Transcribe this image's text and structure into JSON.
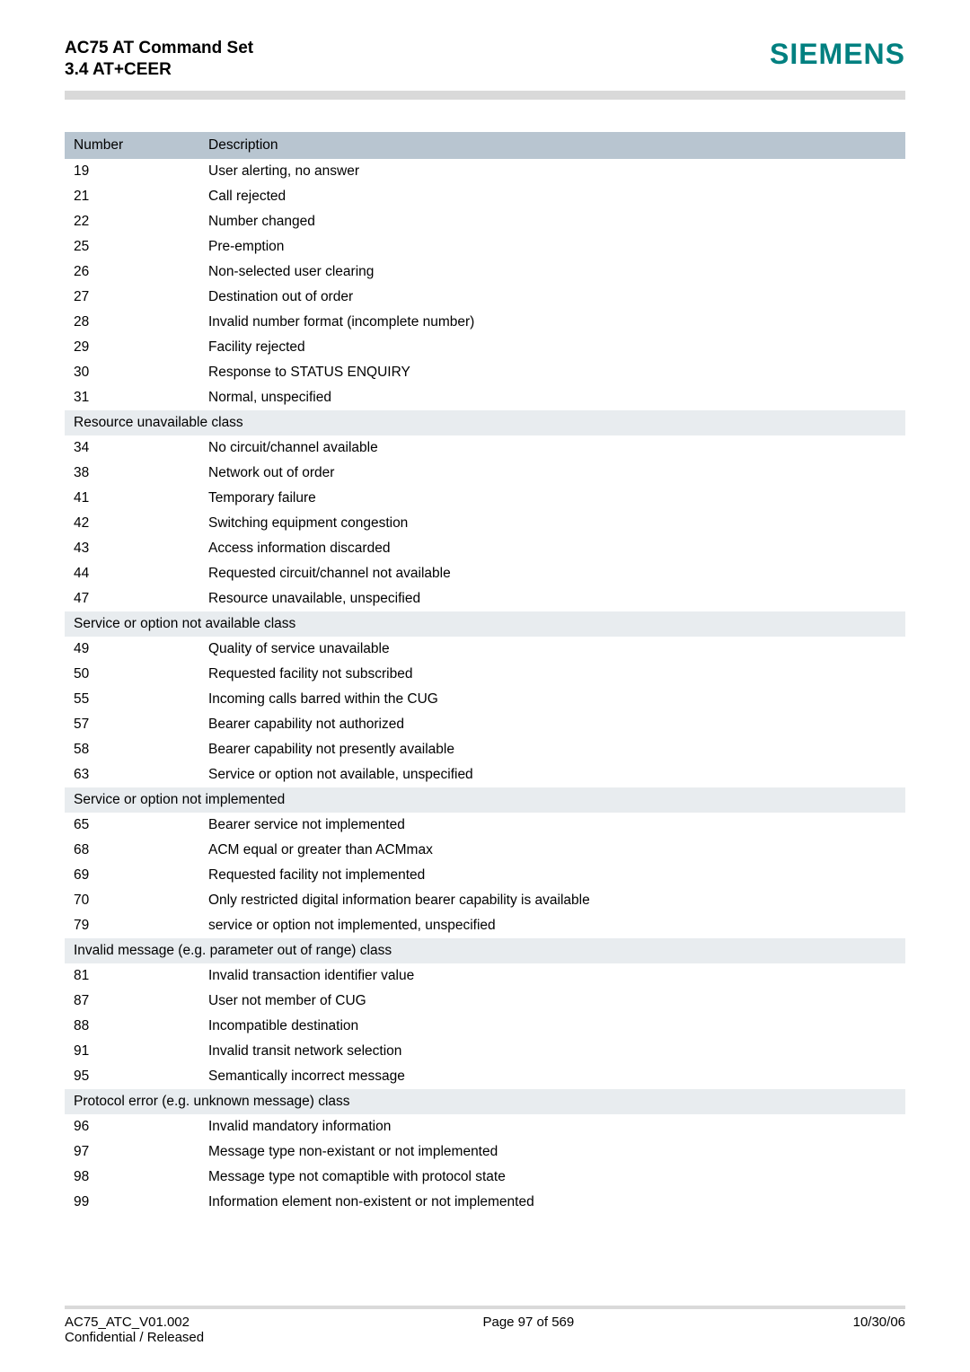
{
  "header": {
    "title_line1": "AC75 AT Command Set",
    "title_line2": "3.4 AT+CEER",
    "brand": "SIEMENS"
  },
  "colors": {
    "rule": "#d9d9d9",
    "brand": "#008080",
    "th_bg": "#b8c5d0",
    "section_bg": "#e8ecef",
    "text": "#000000",
    "page_bg": "#ffffff"
  },
  "table": {
    "columns": [
      "Number",
      "Description"
    ],
    "rows": [
      {
        "type": "row",
        "num": "19",
        "desc": "User alerting, no answer"
      },
      {
        "type": "row",
        "num": "21",
        "desc": "Call rejected"
      },
      {
        "type": "row",
        "num": "22",
        "desc": "Number changed"
      },
      {
        "type": "row",
        "num": "25",
        "desc": "Pre-emption"
      },
      {
        "type": "row",
        "num": "26",
        "desc": "Non-selected user clearing"
      },
      {
        "type": "row",
        "num": "27",
        "desc": "Destination out of order"
      },
      {
        "type": "row",
        "num": "28",
        "desc": "Invalid number format (incomplete number)"
      },
      {
        "type": "row",
        "num": "29",
        "desc": "Facility rejected"
      },
      {
        "type": "row",
        "num": "30",
        "desc": "Response to STATUS ENQUIRY"
      },
      {
        "type": "row",
        "num": "31",
        "desc": "Normal, unspecified"
      },
      {
        "type": "section",
        "label": "Resource unavailable class"
      },
      {
        "type": "row",
        "num": "34",
        "desc": "No circuit/channel available"
      },
      {
        "type": "row",
        "num": "38",
        "desc": "Network out of order"
      },
      {
        "type": "row",
        "num": "41",
        "desc": "Temporary failure"
      },
      {
        "type": "row",
        "num": "42",
        "desc": "Switching equipment congestion"
      },
      {
        "type": "row",
        "num": "43",
        "desc": "Access information discarded"
      },
      {
        "type": "row",
        "num": "44",
        "desc": "Requested circuit/channel not available"
      },
      {
        "type": "row",
        "num": "47",
        "desc": "Resource unavailable, unspecified"
      },
      {
        "type": "section",
        "label": "Service or option not available class"
      },
      {
        "type": "row",
        "num": "49",
        "desc": "Quality of service unavailable"
      },
      {
        "type": "row",
        "num": "50",
        "desc": "Requested facility not subscribed"
      },
      {
        "type": "row",
        "num": "55",
        "desc": "Incoming calls barred within the CUG"
      },
      {
        "type": "row",
        "num": "57",
        "desc": "Bearer capability not authorized"
      },
      {
        "type": "row",
        "num": "58",
        "desc": "Bearer capability not presently available"
      },
      {
        "type": "row",
        "num": "63",
        "desc": "Service or option not available, unspecified"
      },
      {
        "type": "section",
        "label": "Service or option not implemented"
      },
      {
        "type": "row",
        "num": "65",
        "desc": "Bearer service not implemented"
      },
      {
        "type": "row",
        "num": "68",
        "desc": "ACM equal or greater than ACMmax"
      },
      {
        "type": "row",
        "num": "69",
        "desc": "Requested facility not implemented"
      },
      {
        "type": "row",
        "num": "70",
        "desc": "Only restricted digital information bearer capability is available"
      },
      {
        "type": "row",
        "num": "79",
        "desc": "service or option not implemented, unspecified"
      },
      {
        "type": "section",
        "label": "Invalid message (e.g. parameter out of range) class"
      },
      {
        "type": "row",
        "num": "81",
        "desc": "Invalid transaction identifier value"
      },
      {
        "type": "row",
        "num": "87",
        "desc": "User not member of CUG"
      },
      {
        "type": "row",
        "num": "88",
        "desc": "Incompatible destination"
      },
      {
        "type": "row",
        "num": "91",
        "desc": "Invalid transit network selection"
      },
      {
        "type": "row",
        "num": "95",
        "desc": "Semantically incorrect message"
      },
      {
        "type": "section",
        "label": "Protocol error (e.g. unknown message) class"
      },
      {
        "type": "row",
        "num": "96",
        "desc": "Invalid mandatory information"
      },
      {
        "type": "row",
        "num": "97",
        "desc": "Message type non-existant or not implemented"
      },
      {
        "type": "row",
        "num": "98",
        "desc": "Message type not comaptible with protocol state"
      },
      {
        "type": "row",
        "num": "99",
        "desc": "Information element non-existent or not implemented"
      }
    ]
  },
  "footer": {
    "left_line1": "AC75_ATC_V01.002",
    "left_line2": "Confidential / Released",
    "center": "Page 97 of 569",
    "right": "10/30/06"
  }
}
